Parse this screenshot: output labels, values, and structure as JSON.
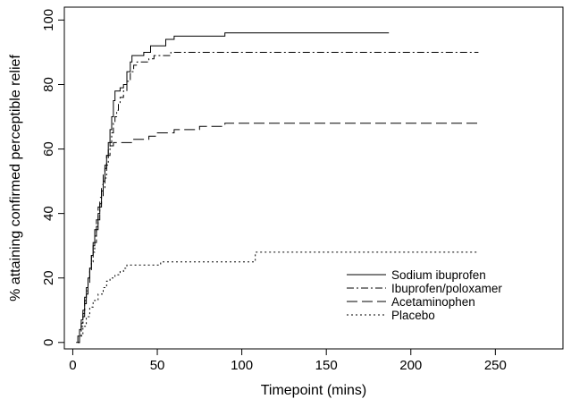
{
  "chart_data": {
    "type": "line",
    "title": "",
    "xlabel": "Timepoint (mins)",
    "ylabel": "% attaining confirmed perceptible relief",
    "xlim": [
      -5,
      290
    ],
    "ylim": [
      -2,
      104
    ],
    "xticks": [
      0,
      50,
      100,
      150,
      200,
      250
    ],
    "yticks": [
      0,
      20,
      40,
      60,
      80,
      100
    ],
    "legend": "bottom-right",
    "grid": false,
    "series": [
      {
        "name": "Sodium ibuprofen",
        "dash": "",
        "points": [
          [
            2,
            0
          ],
          [
            3,
            2
          ],
          [
            4,
            4
          ],
          [
            5,
            7
          ],
          [
            6,
            10
          ],
          [
            7,
            14
          ],
          [
            8,
            17
          ],
          [
            9,
            20
          ],
          [
            10,
            23
          ],
          [
            11,
            27
          ],
          [
            12,
            30
          ],
          [
            13,
            33
          ],
          [
            14,
            36
          ],
          [
            15,
            40
          ],
          [
            16,
            43
          ],
          [
            17,
            47
          ],
          [
            18,
            50
          ],
          [
            19,
            54
          ],
          [
            20,
            58
          ],
          [
            21,
            62
          ],
          [
            22,
            66
          ],
          [
            23,
            70
          ],
          [
            24,
            75
          ],
          [
            25,
            78
          ],
          [
            28,
            79
          ],
          [
            30,
            80
          ],
          [
            32,
            84
          ],
          [
            34,
            87
          ],
          [
            35,
            89
          ],
          [
            40,
            89
          ],
          [
            42,
            90
          ],
          [
            46,
            92
          ],
          [
            55,
            94
          ],
          [
            60,
            95
          ],
          [
            88,
            95
          ],
          [
            90,
            96
          ],
          [
            187,
            96
          ]
        ]
      },
      {
        "name": "Ibuprofen/poloxamer",
        "dash": "8,3,2,3",
        "points": [
          [
            3,
            0
          ],
          [
            4,
            2
          ],
          [
            5,
            5
          ],
          [
            6,
            8
          ],
          [
            7,
            12
          ],
          [
            8,
            15
          ],
          [
            9,
            18
          ],
          [
            10,
            22
          ],
          [
            11,
            25
          ],
          [
            12,
            28
          ],
          [
            13,
            31
          ],
          [
            14,
            35
          ],
          [
            15,
            38
          ],
          [
            16,
            42
          ],
          [
            17,
            45
          ],
          [
            18,
            48
          ],
          [
            19,
            51
          ],
          [
            20,
            55
          ],
          [
            21,
            58
          ],
          [
            22,
            62
          ],
          [
            23,
            65
          ],
          [
            24,
            68
          ],
          [
            25,
            70
          ],
          [
            26,
            72
          ],
          [
            27,
            74
          ],
          [
            28,
            76
          ],
          [
            30,
            78
          ],
          [
            32,
            81
          ],
          [
            34,
            84
          ],
          [
            36,
            86
          ],
          [
            38,
            87
          ],
          [
            45,
            88
          ],
          [
            48,
            89
          ],
          [
            58,
            90
          ],
          [
            240,
            90
          ]
        ]
      },
      {
        "name": "Acetaminophen",
        "dash": "12,5",
        "points": [
          [
            3,
            0
          ],
          [
            4,
            3
          ],
          [
            5,
            6
          ],
          [
            6,
            9
          ],
          [
            7,
            13
          ],
          [
            8,
            16
          ],
          [
            9,
            20
          ],
          [
            10,
            24
          ],
          [
            11,
            27
          ],
          [
            12,
            31
          ],
          [
            13,
            35
          ],
          [
            14,
            38
          ],
          [
            15,
            42
          ],
          [
            16,
            45
          ],
          [
            17,
            49
          ],
          [
            18,
            52
          ],
          [
            19,
            55
          ],
          [
            20,
            58
          ],
          [
            21,
            60
          ],
          [
            22,
            61
          ],
          [
            24,
            62
          ],
          [
            30,
            62
          ],
          [
            35,
            63
          ],
          [
            40,
            63
          ],
          [
            45,
            64
          ],
          [
            50,
            65
          ],
          [
            60,
            66
          ],
          [
            70,
            66
          ],
          [
            75,
            67
          ],
          [
            85,
            67
          ],
          [
            90,
            68
          ],
          [
            240,
            68
          ]
        ]
      },
      {
        "name": "Placebo",
        "dash": "2,3",
        "points": [
          [
            3,
            0
          ],
          [
            4,
            2
          ],
          [
            6,
            5
          ],
          [
            8,
            8
          ],
          [
            10,
            11
          ],
          [
            12,
            13
          ],
          [
            15,
            15
          ],
          [
            18,
            17
          ],
          [
            20,
            19
          ],
          [
            22,
            20
          ],
          [
            25,
            21
          ],
          [
            28,
            22
          ],
          [
            30,
            23
          ],
          [
            32,
            24
          ],
          [
            40,
            24
          ],
          [
            50,
            24
          ],
          [
            52,
            25
          ],
          [
            80,
            25
          ],
          [
            100,
            25
          ],
          [
            107,
            25
          ],
          [
            108,
            28
          ],
          [
            240,
            28
          ]
        ]
      }
    ]
  }
}
